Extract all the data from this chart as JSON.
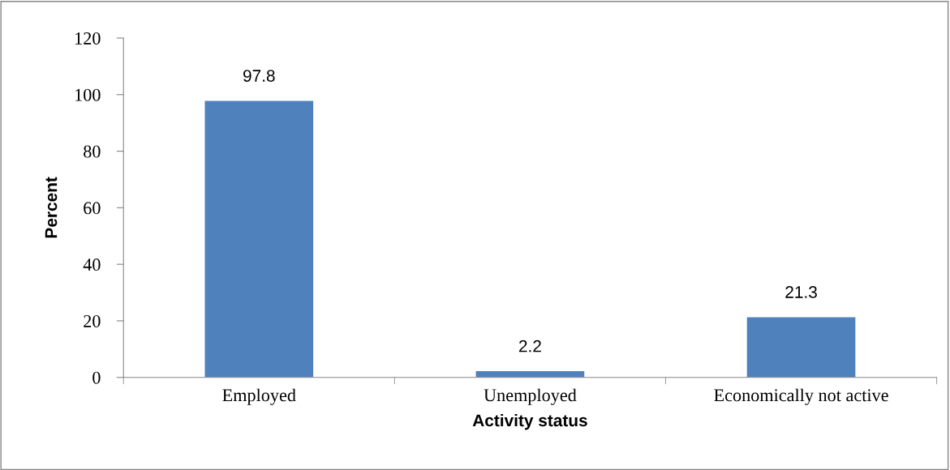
{
  "chart_data": {
    "type": "bar",
    "xlabel": "Activity status",
    "ylabel": "Percent",
    "categories": [
      "Employed",
      "Unemployed",
      "Economically not active"
    ],
    "values": [
      97.8,
      2.2,
      21.3
    ],
    "color": "#4f81bd",
    "ylim": [
      0,
      120
    ],
    "yticks": [
      0,
      20,
      40,
      60,
      80,
      100,
      120
    ],
    "grid": false,
    "data_labels": true
  }
}
